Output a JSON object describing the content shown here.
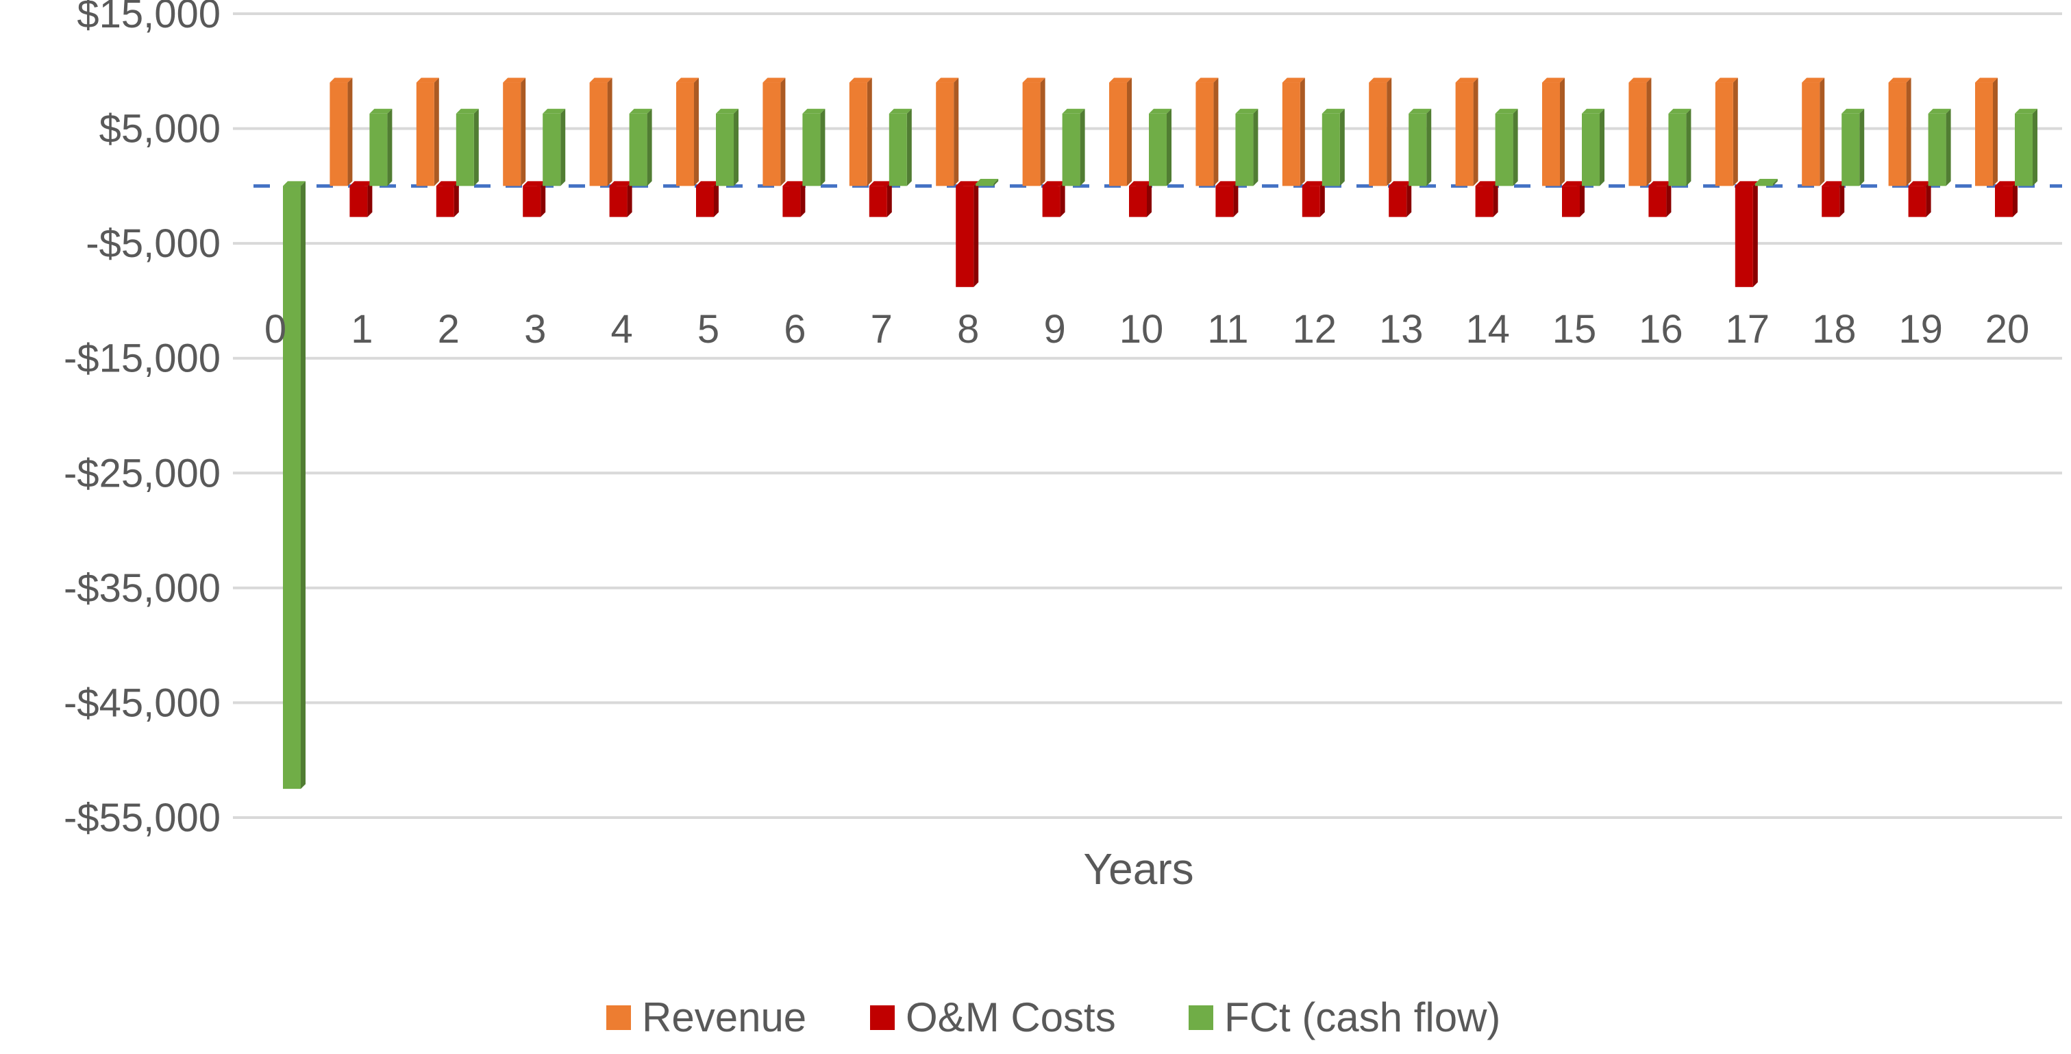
{
  "chart_data": {
    "type": "bar",
    "title": "",
    "xlabel": "Years",
    "ylabel": "",
    "ylim": [
      -55000,
      15000
    ],
    "y_ticks": [
      15000,
      5000,
      -5000,
      -15000,
      -25000,
      -35000,
      -45000,
      -55000
    ],
    "y_tick_labels": [
      "$15,000",
      "$5,000",
      "-$5,000",
      "-$15,000",
      "-$25,000",
      "-$35,000",
      "-$45,000",
      "-$55,000"
    ],
    "grid": true,
    "legend_position": "bottom",
    "categories": [
      "0",
      "1",
      "2",
      "3",
      "4",
      "5",
      "6",
      "7",
      "8",
      "9",
      "10",
      "11",
      "12",
      "13",
      "14",
      "15",
      "16",
      "17",
      "18",
      "19",
      "20"
    ],
    "series": [
      {
        "name": "Revenue",
        "color": "#ED7D31",
        "values": [
          0,
          9000,
          9000,
          9000,
          9000,
          9000,
          9000,
          9000,
          9000,
          9000,
          9000,
          9000,
          9000,
          9000,
          9000,
          9000,
          9000,
          9000,
          9000,
          9000,
          9000
        ]
      },
      {
        "name": "O&M Costs",
        "color": "#C00000",
        "values": [
          0,
          -2700,
          -2700,
          -2700,
          -2700,
          -2700,
          -2700,
          -2700,
          -8800,
          -2700,
          -2700,
          -2700,
          -2700,
          -2700,
          -2700,
          -2700,
          -2700,
          -8800,
          -2700,
          -2700,
          -2700
        ]
      },
      {
        "name": "FCt (cash flow)",
        "color": "#70AD47",
        "values": [
          -52500,
          6300,
          6300,
          6300,
          6300,
          6300,
          6300,
          6300,
          200,
          6300,
          6300,
          6300,
          6300,
          6300,
          6300,
          6300,
          6300,
          200,
          6300,
          6300,
          6300
        ]
      }
    ]
  }
}
